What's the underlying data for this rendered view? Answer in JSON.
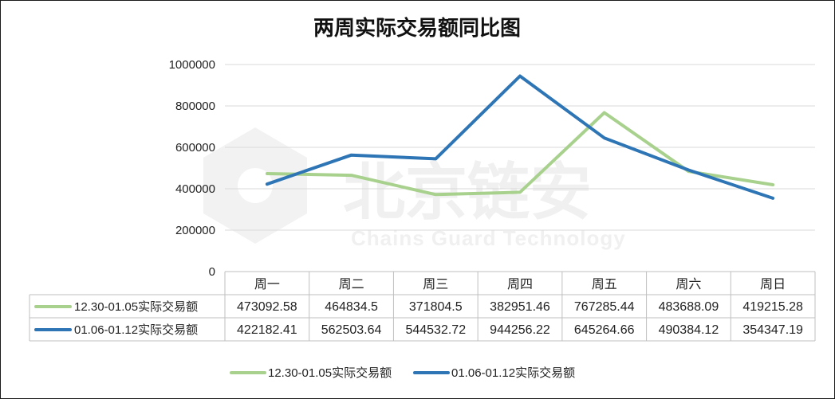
{
  "chart_data": {
    "type": "line",
    "title": "两周实际交易额同比图",
    "categories": [
      "周一",
      "周二",
      "周三",
      "周四",
      "周五",
      "周六",
      "周日"
    ],
    "series": [
      {
        "name": "12.30-01.05实际交易额",
        "color": "#a9d18e",
        "values": [
          473092.58,
          464834.5,
          371804.5,
          382951.46,
          767285.44,
          483688.09,
          419215.28
        ],
        "labels": [
          "473092.58",
          "464834.5",
          "371804.5",
          "382951.46",
          "767285.44",
          "483688.09",
          "419215.28"
        ]
      },
      {
        "name": "01.06-01.12实际交易额",
        "color": "#2e75b6",
        "values": [
          422182.41,
          562503.64,
          544532.72,
          944256.22,
          645264.66,
          490384.12,
          354347.19
        ],
        "labels": [
          "422182.41",
          "562503.64",
          "544532.72",
          "944256.22",
          "645264.66",
          "490384.12",
          "354347.19"
        ]
      }
    ],
    "ylim": [
      0,
      1000000
    ],
    "yticks": [
      "0",
      "200000",
      "400000",
      "600000",
      "800000",
      "1000000"
    ],
    "grid": true,
    "legend": "bottom",
    "data_table": true
  },
  "watermark": {
    "text_cn": "北京链安",
    "text_en": "Chains Guard Technology",
    "icon": "shield-logo-icon"
  }
}
